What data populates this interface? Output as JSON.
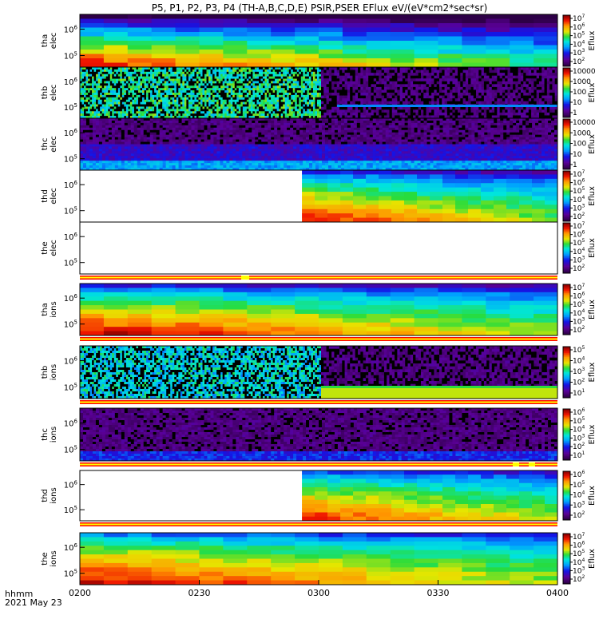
{
  "chart_data": {
    "type": "heatmap",
    "title": "P5, P1, P2, P3, P4 (TH-A,B,C,D,E) PSIR,PSER EFlux eV/(eV*cm2*sec*sr)",
    "time_axis": {
      "label_line1": "hhmm",
      "label_line2": "2021 May 23",
      "tick_labels": [
        "0200",
        "0230",
        "0300",
        "0330",
        "0400"
      ],
      "range": [
        "02:00",
        "04:00"
      ]
    },
    "colorbar_label": "Eflux",
    "panels": [
      {
        "label": "tha elec",
        "ylabel": [
          "tha",
          "elec"
        ],
        "yticks": [
          "10^6",
          "10^5"
        ],
        "ylog": true,
        "style": "smooth",
        "start_fraction": 0.0,
        "bottom": 0.9,
        "top": 0.0,
        "time_decay": 0.35,
        "noise": 0.06,
        "colorbar_ticks": [
          "10^7",
          "10^6",
          "10^5",
          "10^4",
          "10^3",
          "10^2"
        ],
        "has_bar": false
      },
      {
        "label": "thb elec",
        "ylabel": [
          "thb",
          "elec"
        ],
        "yticks": [
          "10^6",
          "10^5"
        ],
        "ylog": true,
        "style": "noisy_then_dark",
        "noisy_until": 0.505,
        "noisy_level": 0.52,
        "colorbar_ticks": [
          "10000",
          "1000",
          "100",
          "10",
          "1"
        ],
        "has_bar": false
      },
      {
        "label": "thc elec",
        "ylabel": [
          "thc",
          "elec"
        ],
        "yticks": [
          "10^6",
          "10^5"
        ],
        "ylog": true,
        "style": "dark_noise",
        "noise_level": 0.12,
        "colorbar_ticks": [
          "10000",
          "1000",
          "100",
          "10",
          "1"
        ],
        "has_bar": false
      },
      {
        "label": "thd elec",
        "ylabel": [
          "thd",
          "elec"
        ],
        "yticks": [
          "10^6",
          "10^5"
        ],
        "ylog": true,
        "style": "smooth",
        "start_fraction": 0.465,
        "bottom": 0.92,
        "top": 0.25,
        "time_decay": 0.3,
        "noise": 0.05,
        "colorbar_ticks": [
          "10^7",
          "10^6",
          "10^5",
          "10^4",
          "10^3",
          "10^2"
        ],
        "has_bar": false
      },
      {
        "label": "the elec",
        "ylabel": [
          "the",
          "elec"
        ],
        "yticks": [
          "10^6",
          "10^5"
        ],
        "ylog": true,
        "style": "empty",
        "colorbar_ticks": [
          "10^7",
          "10^6",
          "10^5",
          "10^4",
          "10^3",
          "10^2"
        ],
        "has_bar": true
      },
      {
        "label": "tha ions",
        "ylabel": [
          "tha",
          "ions"
        ],
        "yticks": [
          "10^6",
          "10^5"
        ],
        "ylog": true,
        "style": "smooth",
        "start_fraction": 0.0,
        "bottom": 0.95,
        "top": 0.25,
        "time_decay": 0.3,
        "noise": 0.05,
        "colorbar_ticks": [
          "10^7",
          "10^6",
          "10^5",
          "10^4",
          "10^3",
          "10^2"
        ],
        "has_bar": true
      },
      {
        "label": "thb ions",
        "ylabel": [
          "thb",
          "ions"
        ],
        "yticks": [
          "10^6",
          "10^5"
        ],
        "ylog": true,
        "style": "noisy_then_dark",
        "noisy_until": 0.505,
        "noisy_level": 0.45,
        "colorbar_ticks": [
          "10^5",
          "10^4",
          "10^3",
          "10^2",
          "10^1"
        ],
        "has_bar": true
      },
      {
        "label": "thc ions",
        "ylabel": [
          "thc",
          "ions"
        ],
        "yticks": [
          "10^6",
          "10^5"
        ],
        "ylog": true,
        "style": "dark_noise",
        "noise_level": 0.12,
        "colorbar_ticks": [
          "10^6",
          "10^5",
          "10^4",
          "10^3",
          "10^2",
          "10^1"
        ],
        "has_bar": true
      },
      {
        "label": "thd ions",
        "ylabel": [
          "thd",
          "ions"
        ],
        "yticks": [
          "10^6",
          "10^5"
        ],
        "ylog": true,
        "style": "smooth",
        "start_fraction": 0.465,
        "bottom": 0.9,
        "top": 0.3,
        "time_decay": 0.25,
        "noise": 0.05,
        "colorbar_ticks": [
          "10^6",
          "10^5",
          "10^4",
          "10^3",
          "10^2"
        ],
        "has_bar": true
      },
      {
        "label": "the ions",
        "ylabel": [
          "the",
          "ions"
        ],
        "yticks": [
          "10^6",
          "10^5"
        ],
        "ylog": true,
        "style": "smooth",
        "start_fraction": 0.0,
        "bottom": 0.95,
        "top": 0.35,
        "time_decay": 0.3,
        "noise": 0.05,
        "colorbar_ticks": [
          "10^7",
          "10^6",
          "10^5",
          "10^4",
          "10^3",
          "10^2"
        ],
        "has_bar": false
      }
    ]
  }
}
